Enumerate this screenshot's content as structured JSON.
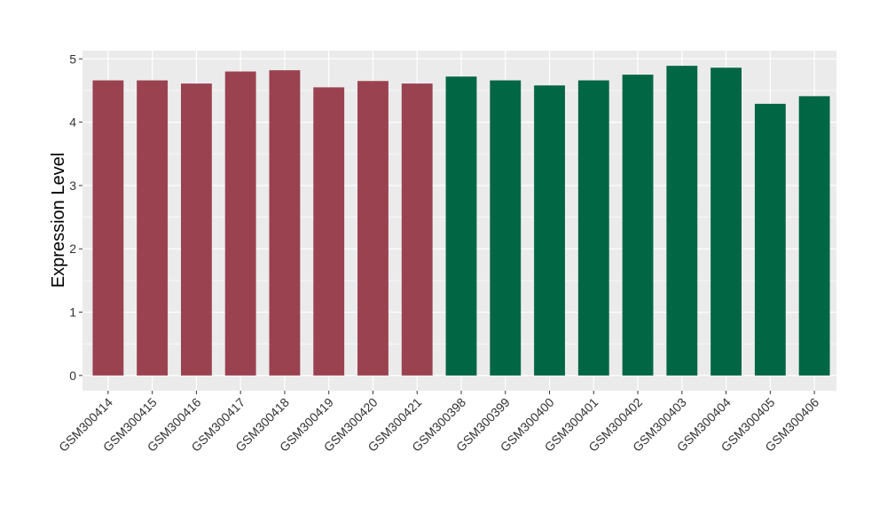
{
  "chart_data": {
    "type": "bar",
    "title": "",
    "xlabel": "",
    "ylabel": "Expression Level",
    "ylim": [
      -0.24,
      5.13
    ],
    "yticks": [
      "0",
      "1",
      "2",
      "3",
      "4",
      "5"
    ],
    "grid": true,
    "categories": [
      "GSM300414",
      "GSM300415",
      "GSM300416",
      "GSM300417",
      "GSM300418",
      "GSM300419",
      "GSM300420",
      "GSM300421",
      "GSM300398",
      "GSM300399",
      "GSM300400",
      "GSM300401",
      "GSM300402",
      "GSM300403",
      "GSM300404",
      "GSM300405",
      "GSM300406"
    ],
    "values": [
      4.66,
      4.66,
      4.61,
      4.8,
      4.82,
      4.55,
      4.65,
      4.61,
      4.72,
      4.66,
      4.58,
      4.66,
      4.75,
      4.89,
      4.86,
      4.29,
      4.41
    ],
    "groups": [
      0,
      0,
      0,
      0,
      0,
      0,
      0,
      0,
      1,
      1,
      1,
      1,
      1,
      1,
      1,
      1,
      1
    ],
    "colors": [
      "#9a4250",
      "#006644"
    ],
    "panel_color": "#ebebeb"
  }
}
